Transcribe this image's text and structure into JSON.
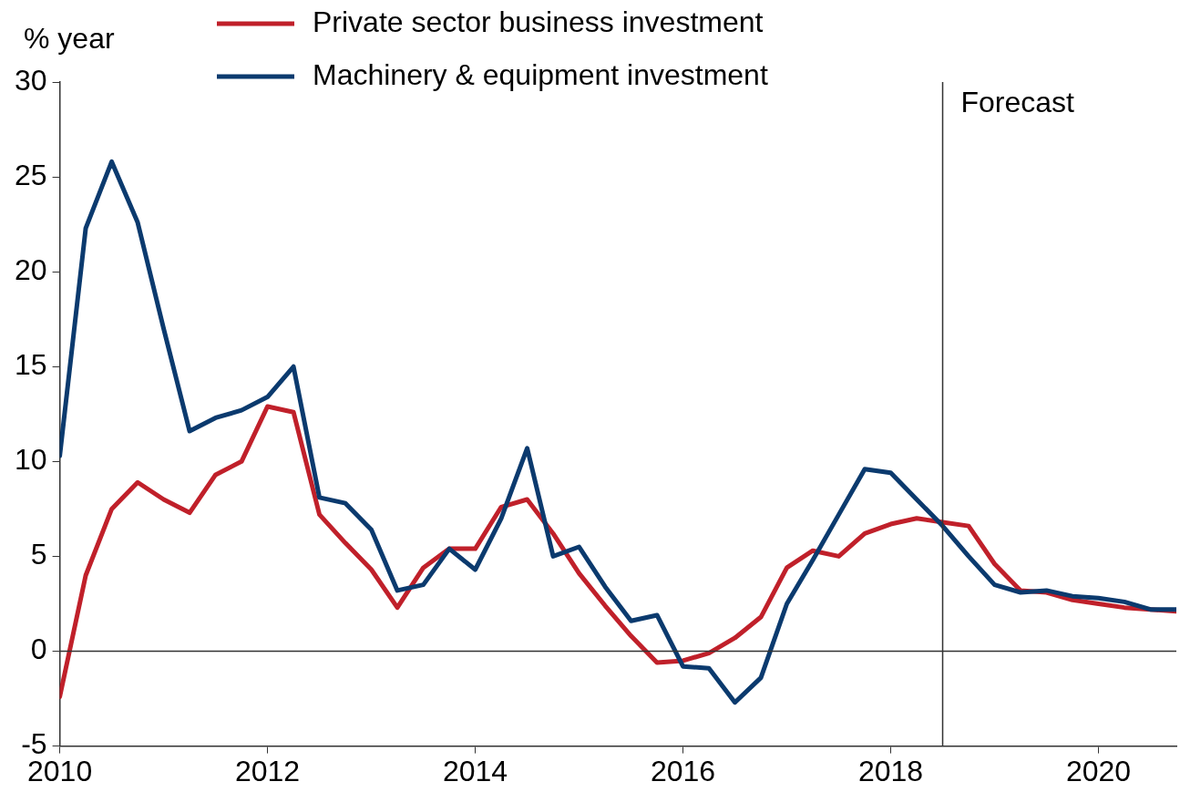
{
  "chart_data": {
    "type": "line",
    "ylabel": "% year",
    "x": [
      2010,
      2010.25,
      2010.5,
      2010.75,
      2011,
      2011.25,
      2011.5,
      2011.75,
      2012,
      2012.25,
      2012.5,
      2012.75,
      2013,
      2013.25,
      2013.5,
      2013.75,
      2014,
      2014.25,
      2014.5,
      2014.75,
      2015,
      2015.25,
      2015.5,
      2015.75,
      2016,
      2016.25,
      2016.5,
      2016.75,
      2017,
      2017.25,
      2017.5,
      2017.75,
      2018,
      2018.25,
      2018.5,
      2018.75,
      2019,
      2019.25,
      2019.5,
      2019.75,
      2020,
      2020.25,
      2020.5,
      2020.75
    ],
    "series": [
      {
        "name": "Private sector business investment",
        "color": "#c0202a",
        "values": [
          -2.4,
          4.0,
          7.5,
          8.9,
          8.0,
          7.3,
          9.3,
          10.0,
          12.9,
          12.6,
          7.2,
          5.7,
          4.3,
          2.3,
          4.4,
          5.4,
          5.4,
          7.6,
          8.0,
          6.2,
          4.1,
          2.4,
          0.8,
          -0.6,
          -0.5,
          -0.1,
          0.7,
          1.8,
          4.4,
          5.3,
          5.0,
          6.2,
          6.7,
          7.0,
          6.8,
          6.6,
          4.6,
          3.2,
          3.1,
          2.7,
          2.5,
          2.3,
          2.2,
          2.1
        ]
      },
      {
        "name": "Machinery & equipment investment",
        "color": "#0b3a6e",
        "values": [
          10.3,
          22.3,
          25.8,
          22.6,
          17.0,
          11.6,
          12.3,
          12.7,
          13.4,
          15.0,
          8.1,
          7.8,
          6.4,
          3.2,
          3.5,
          5.4,
          4.3,
          7.0,
          10.7,
          5.0,
          5.5,
          3.4,
          1.6,
          1.9,
          -0.8,
          -0.9,
          -2.7,
          -1.4,
          2.5,
          4.8,
          7.2,
          9.6,
          9.4,
          8.0,
          6.6,
          5.0,
          3.5,
          3.1,
          3.2,
          2.9,
          2.8,
          2.6,
          2.2,
          2.2
        ]
      }
    ],
    "xlim": [
      2010,
      2020.75
    ],
    "xticks": [
      2010,
      2012,
      2014,
      2016,
      2018,
      2020
    ],
    "ylim": [
      -5,
      30
    ],
    "yticks": [
      -5,
      0,
      5,
      10,
      15,
      20,
      25,
      30
    ],
    "ref_lines": [
      {
        "axis": "x",
        "value": 2018.5,
        "label": "Forecast"
      },
      {
        "axis": "y",
        "value": 0
      }
    ],
    "grid": false,
    "legend": "top",
    "marker": "none",
    "line_style": "solid"
  }
}
